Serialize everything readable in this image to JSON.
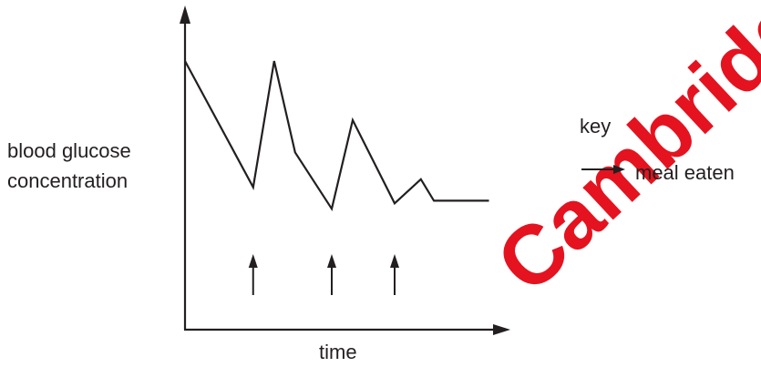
{
  "chart_data": {
    "type": "line",
    "title": "",
    "xlabel": "time",
    "ylabel_lines": [
      "blood glucose",
      "concentration"
    ],
    "x_ticks": [],
    "y_ticks": [],
    "grid": false,
    "series": [
      {
        "x": [
          0,
          13,
          17,
          21,
          28,
          32,
          40,
          45,
          47.5,
          58
        ],
        "y": [
          100,
          53,
          100,
          66,
          45,
          78,
          47,
          56,
          48,
          48
        ]
      }
    ],
    "meal_times": [
      13,
      28,
      40
    ],
    "legend": {
      "title": "key",
      "entries": [
        {
          "symbol": "arrow",
          "label": "meal eaten"
        }
      ],
      "position": "right"
    },
    "watermark": "Cambridge"
  },
  "colors": {
    "ink": "#231f20",
    "watermark": "#e30613"
  }
}
